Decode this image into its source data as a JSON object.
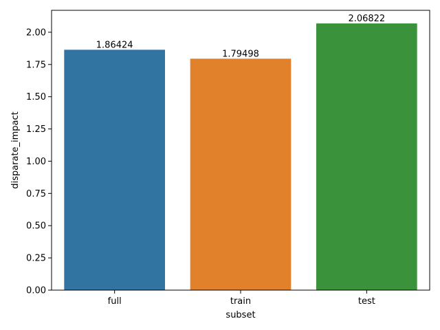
{
  "chart_data": {
    "type": "bar",
    "categories": [
      "full",
      "train",
      "test"
    ],
    "values": [
      1.86424,
      1.79498,
      2.06822
    ],
    "data_labels": [
      "1.86424",
      "1.79498",
      "2.06822"
    ],
    "colors": [
      "#3274a1",
      "#e1812c",
      "#3a923a"
    ],
    "xlabel": "subset",
    "ylabel": "disparate_impact",
    "ylim": [
      0,
      2.17
    ],
    "yticks": [
      0.0,
      0.25,
      0.5,
      0.75,
      1.0,
      1.25,
      1.5,
      1.75,
      2.0
    ],
    "ytick_labels": [
      "0.00",
      "0.25",
      "0.50",
      "0.75",
      "1.00",
      "1.25",
      "1.50",
      "1.75",
      "2.00"
    ],
    "grid": false,
    "legend": "none"
  }
}
